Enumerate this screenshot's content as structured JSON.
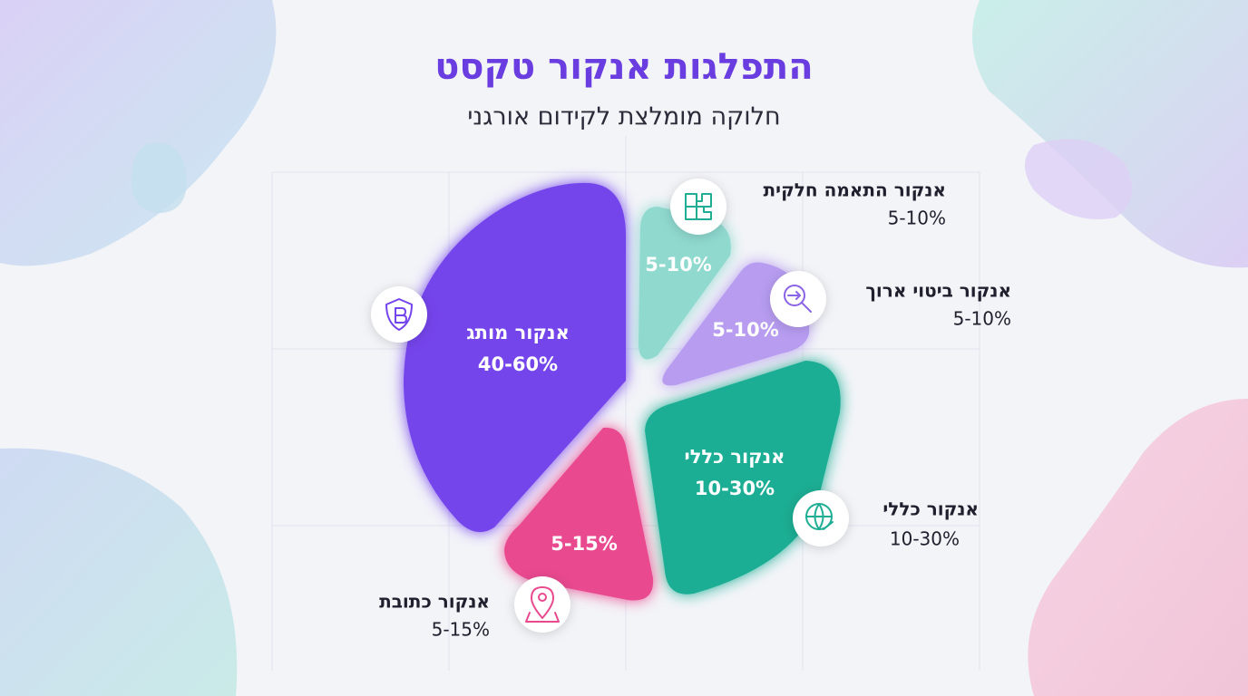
{
  "header": {
    "title": "התפלגות אנקור טקסט",
    "subtitle": "חלוקה מומלצת לקידום אורגני"
  },
  "segments": [
    {
      "name": "אנקור מותג",
      "range": "40-60%"
    },
    {
      "name": "אנקור התאמה חלקית",
      "range": "5-10%"
    },
    {
      "name": "אנקור ביטוי ארוך",
      "range": "5-10%"
    },
    {
      "name": "אנקור כללי",
      "range": "10-30%"
    },
    {
      "name": "אנקור כתובת",
      "range": "5-15%"
    }
  ]
}
